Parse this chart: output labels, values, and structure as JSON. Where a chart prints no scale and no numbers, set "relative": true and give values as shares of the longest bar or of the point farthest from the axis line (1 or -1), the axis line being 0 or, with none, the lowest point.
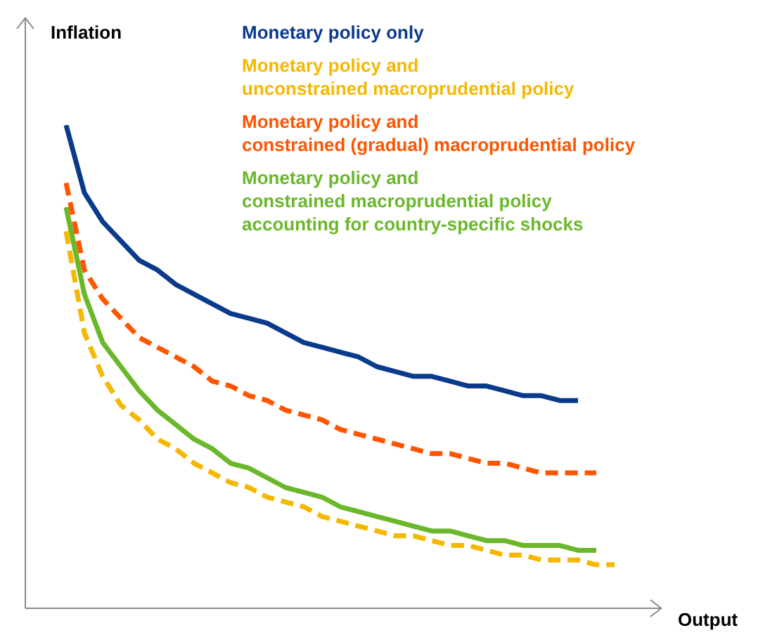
{
  "chart_data": {
    "type": "line",
    "relative": true,
    "xlabel": "Output",
    "ylabel": "Inflation",
    "marker": "none",
    "categories": [
      null,
      null,
      null,
      null,
      null,
      null,
      null,
      null,
      null,
      null,
      null,
      null,
      null,
      null,
      null,
      null,
      null,
      null,
      null,
      null,
      null,
      null,
      null,
      null,
      null,
      null,
      null,
      null,
      null,
      null,
      null
    ],
    "series": [
      {
        "name": "Monetary policy only",
        "color": "#0a3a8c",
        "line_style": "solid",
        "values": [
          1,
          0.86,
          0.8,
          0.76,
          0.72,
          0.7,
          0.67,
          0.65,
          0.63,
          0.61,
          0.6,
          0.59,
          0.57,
          0.55,
          0.54,
          0.53,
          0.52,
          0.5,
          0.49,
          0.48,
          0.48,
          0.47,
          0.46,
          0.46,
          0.45,
          0.44,
          0.44,
          0.43,
          0.43,
          null,
          null
        ]
      },
      {
        "name": "Monetary policy and\nunconstrained macroprudential policy",
        "color": "#f5b800",
        "line_style": "dashed",
        "values": [
          0.78,
          0.57,
          0.48,
          0.42,
          0.39,
          0.35,
          0.33,
          0.3,
          0.28,
          0.26,
          0.25,
          0.23,
          0.22,
          0.21,
          0.19,
          0.18,
          0.17,
          0.16,
          0.15,
          0.15,
          0.14,
          0.13,
          0.13,
          0.12,
          0.11,
          0.11,
          0.1,
          0.1,
          0.1,
          0.09,
          0.09
        ]
      },
      {
        "name": "Monetary policy and\nconstrained (gradual) macroprudential policy",
        "color": "#ff5500",
        "line_style": "dashed",
        "values": [
          0.88,
          0.7,
          0.64,
          0.6,
          0.56,
          0.54,
          0.52,
          0.5,
          0.47,
          0.46,
          0.44,
          0.43,
          0.41,
          0.4,
          0.39,
          0.37,
          0.36,
          0.35,
          0.34,
          0.33,
          0.32,
          0.32,
          0.31,
          0.3,
          0.3,
          0.29,
          0.28,
          0.28,
          0.28,
          0.28,
          null
        ]
      },
      {
        "name": "Monetary policy and\nconstrained macroprudential policy\naccounting for country-specific shocks",
        "color": "#6ab82a",
        "line_style": "solid",
        "values": [
          0.83,
          0.65,
          0.55,
          0.5,
          0.45,
          0.41,
          0.38,
          0.35,
          0.33,
          0.3,
          0.29,
          0.27,
          0.25,
          0.24,
          0.23,
          0.21,
          0.2,
          0.19,
          0.18,
          0.17,
          0.16,
          0.16,
          0.15,
          0.14,
          0.14,
          0.13,
          0.13,
          0.13,
          0.12,
          0.12,
          null
        ]
      }
    ]
  }
}
